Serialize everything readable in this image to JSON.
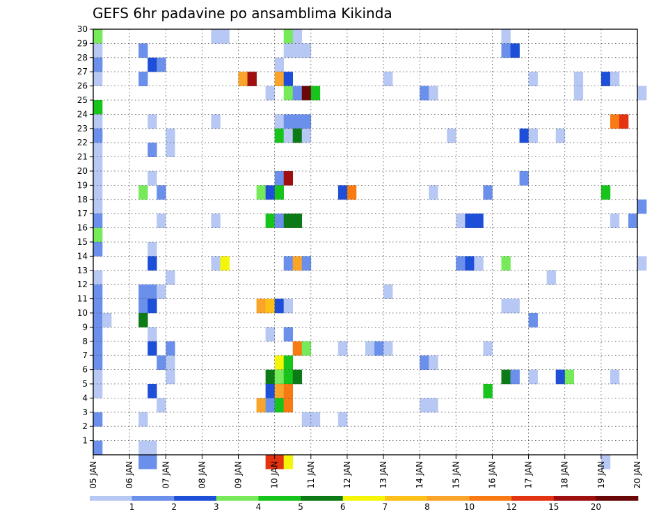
{
  "chart_data": {
    "type": "heatmap",
    "title": "GEFS 6hr padavine po ansamblima Kikinda",
    "x_labels": [
      "05 JAN",
      "06 JAN",
      "07 JAN",
      "08 JAN",
      "09 JAN",
      "10 JAN",
      "11 JAN",
      "12 JAN",
      "13 JAN",
      "14 JAN",
      "15 JAN",
      "16 JAN",
      "17 JAN",
      "18 JAN",
      "19 JAN",
      "20 JAN"
    ],
    "y_labels": [
      "1",
      "2",
      "3",
      "4",
      "5",
      "6",
      "7",
      "8",
      "9",
      "10",
      "11",
      "12",
      "13",
      "14",
      "15",
      "16",
      "17",
      "18",
      "19",
      "20",
      "21",
      "22",
      "23",
      "24",
      "25",
      "26",
      "27",
      "28",
      "29",
      "30"
    ],
    "y_range": [
      0,
      30
    ],
    "x_range": [
      0,
      15
    ],
    "colorbar": {
      "labels": [
        "1",
        "2",
        "3",
        "4",
        "5",
        "6",
        "7",
        "8",
        "10",
        "12",
        "15",
        "20"
      ],
      "colors": [
        "#b8c8f4",
        "#6a90ec",
        "#1e4fd8",
        "#77ea5a",
        "#17c41c",
        "#0c7a16",
        "#f5f50a",
        "#fcc018",
        "#fba42a",
        "#f77a13",
        "#e33310",
        "#a00f0f",
        "#6a0808"
      ]
    },
    "grid": true,
    "cells": [
      {
        "x": 0,
        "y": 29,
        "c": 3
      },
      {
        "x": 0,
        "y": 28,
        "c": 0
      },
      {
        "x": 0,
        "y": 27,
        "c": 1
      },
      {
        "x": 0,
        "y": 26,
        "c": 0
      },
      {
        "x": 0,
        "y": 24,
        "c": 4
      },
      {
        "x": 0,
        "y": 23,
        "c": 0
      },
      {
        "x": 0,
        "y": 22,
        "c": 1
      },
      {
        "x": 0,
        "y": 21,
        "c": 0
      },
      {
        "x": 0,
        "y": 20,
        "c": 0
      },
      {
        "x": 0,
        "y": 19,
        "c": 0
      },
      {
        "x": 0,
        "y": 18,
        "c": 0
      },
      {
        "x": 0,
        "y": 17,
        "c": 0
      },
      {
        "x": 0,
        "y": 16,
        "c": 1
      },
      {
        "x": 0,
        "y": 15,
        "c": 3
      },
      {
        "x": 0,
        "y": 14,
        "c": 1
      },
      {
        "x": 0,
        "y": 12,
        "c": 0
      },
      {
        "x": 0,
        "y": 11,
        "c": 1
      },
      {
        "x": 0,
        "y": 10,
        "c": 1
      },
      {
        "x": 0,
        "y": 9,
        "c": 1
      },
      {
        "x": 0,
        "y": 8,
        "c": 1
      },
      {
        "x": 0,
        "y": 7,
        "c": 1
      },
      {
        "x": 0,
        "y": 6,
        "c": 1
      },
      {
        "x": 0,
        "y": 5,
        "c": 0
      },
      {
        "x": 0,
        "y": 4,
        "c": 0
      },
      {
        "x": 0,
        "y": 2,
        "c": 1
      },
      {
        "x": 0,
        "y": 0,
        "c": 1
      },
      {
        "x": 1,
        "y": 9,
        "c": 0
      },
      {
        "x": 5,
        "y": 28,
        "c": 1
      },
      {
        "x": 5,
        "y": 26,
        "c": 1
      },
      {
        "x": 5,
        "y": 18,
        "c": 3
      },
      {
        "x": 5,
        "y": 11,
        "c": 1
      },
      {
        "x": 5,
        "y": 10,
        "c": 1
      },
      {
        "x": 5,
        "y": 9,
        "c": 5
      },
      {
        "x": 5,
        "y": 2,
        "c": 0
      },
      {
        "x": 5,
        "y": 0,
        "c": 0
      },
      {
        "x": 5,
        "y": -1,
        "c": 1
      },
      {
        "x": 6,
        "y": 27,
        "c": 2
      },
      {
        "x": 6,
        "y": 23,
        "c": 0
      },
      {
        "x": 6,
        "y": 21,
        "c": 1
      },
      {
        "x": 6,
        "y": 19,
        "c": 0
      },
      {
        "x": 6,
        "y": 14,
        "c": 0
      },
      {
        "x": 6,
        "y": 13,
        "c": 2
      },
      {
        "x": 6,
        "y": 11,
        "c": 1
      },
      {
        "x": 6,
        "y": 10,
        "c": 2
      },
      {
        "x": 6,
        "y": 8,
        "c": 0
      },
      {
        "x": 6,
        "y": 7,
        "c": 2
      },
      {
        "x": 6,
        "y": 4,
        "c": 2
      },
      {
        "x": 6,
        "y": 0,
        "c": 0
      },
      {
        "x": 6,
        "y": -1,
        "c": 1
      },
      {
        "x": 7,
        "y": 27,
        "c": 1
      },
      {
        "x": 7,
        "y": 18,
        "c": 1
      },
      {
        "x": 7,
        "y": 16,
        "c": 0
      },
      {
        "x": 7,
        "y": 11,
        "c": 0
      },
      {
        "x": 7,
        "y": 6,
        "c": 1
      },
      {
        "x": 7,
        "y": 3,
        "c": 0
      },
      {
        "x": 8,
        "y": 22,
        "c": 0
      },
      {
        "x": 8,
        "y": 21,
        "c": 0
      },
      {
        "x": 8,
        "y": 12,
        "c": 0
      },
      {
        "x": 8,
        "y": 7,
        "c": 1
      },
      {
        "x": 8,
        "y": 6,
        "c": 0
      },
      {
        "x": 8,
        "y": 5,
        "c": 0
      },
      {
        "x": 13,
        "y": 29,
        "c": 0
      },
      {
        "x": 13,
        "y": 23,
        "c": 0
      },
      {
        "x": 13,
        "y": 16,
        "c": 0
      },
      {
        "x": 13,
        "y": 13,
        "c": 0
      },
      {
        "x": 14,
        "y": 29,
        "c": 0
      },
      {
        "x": 14,
        "y": 13,
        "c": 6
      },
      {
        "x": 16,
        "y": 26,
        "c": 8
      },
      {
        "x": 17,
        "y": 26,
        "c": 11
      },
      {
        "x": 18,
        "y": 18,
        "c": 3
      },
      {
        "x": 18,
        "y": 10,
        "c": 8
      },
      {
        "x": 18,
        "y": 3,
        "c": 8
      },
      {
        "x": 19,
        "y": 25,
        "c": 0
      },
      {
        "x": 19,
        "y": 18,
        "c": 2
      },
      {
        "x": 19,
        "y": 16,
        "c": 4
      },
      {
        "x": 19,
        "y": 10,
        "c": 7
      },
      {
        "x": 19,
        "y": 8,
        "c": 0
      },
      {
        "x": 19,
        "y": 5,
        "c": 5
      },
      {
        "x": 19,
        "y": 4,
        "c": 2
      },
      {
        "x": 19,
        "y": 3,
        "c": 1
      },
      {
        "x": 19,
        "y": -1,
        "c": 10
      },
      {
        "x": 20,
        "y": 27,
        "c": 0
      },
      {
        "x": 20,
        "y": 26,
        "c": 8
      },
      {
        "x": 20,
        "y": 23,
        "c": 0
      },
      {
        "x": 20,
        "y": 22,
        "c": 4
      },
      {
        "x": 20,
        "y": 19,
        "c": 1
      },
      {
        "x": 20,
        "y": 18,
        "c": 4
      },
      {
        "x": 20,
        "y": 16,
        "c": 1
      },
      {
        "x": 20,
        "y": 10,
        "c": 2
      },
      {
        "x": 20,
        "y": 6,
        "c": 6
      },
      {
        "x": 20,
        "y": 5,
        "c": 3
      },
      {
        "x": 20,
        "y": 4,
        "c": 8
      },
      {
        "x": 20,
        "y": 3,
        "c": 4
      },
      {
        "x": 20,
        "y": -1,
        "c": 10
      },
      {
        "x": 21,
        "y": 29,
        "c": 3
      },
      {
        "x": 21,
        "y": 28,
        "c": 0
      },
      {
        "x": 21,
        "y": 26,
        "c": 2
      },
      {
        "x": 21,
        "y": 25,
        "c": 3
      },
      {
        "x": 21,
        "y": 23,
        "c": 1
      },
      {
        "x": 21,
        "y": 22,
        "c": 0
      },
      {
        "x": 21,
        "y": 19,
        "c": 11
      },
      {
        "x": 21,
        "y": 16,
        "c": 5
      },
      {
        "x": 21,
        "y": 13,
        "c": 1
      },
      {
        "x": 21,
        "y": 10,
        "c": 0
      },
      {
        "x": 21,
        "y": 8,
        "c": 1
      },
      {
        "x": 21,
        "y": 6,
        "c": 4
      },
      {
        "x": 21,
        "y": 5,
        "c": 4
      },
      {
        "x": 21,
        "y": 4,
        "c": 9
      },
      {
        "x": 21,
        "y": 3,
        "c": 9
      },
      {
        "x": 21,
        "y": -1,
        "c": 6
      },
      {
        "x": 22,
        "y": 29,
        "c": 0
      },
      {
        "x": 22,
        "y": 28,
        "c": 0
      },
      {
        "x": 22,
        "y": 25,
        "c": 1
      },
      {
        "x": 22,
        "y": 23,
        "c": 1
      },
      {
        "x": 22,
        "y": 22,
        "c": 5
      },
      {
        "x": 22,
        "y": 16,
        "c": 5
      },
      {
        "x": 22,
        "y": 13,
        "c": 8
      },
      {
        "x": 22,
        "y": 7,
        "c": 9
      },
      {
        "x": 22,
        "y": 5,
        "c": 5
      },
      {
        "x": 23,
        "y": 28,
        "c": 0
      },
      {
        "x": 23,
        "y": 25,
        "c": 12
      },
      {
        "x": 23,
        "y": 23,
        "c": 1
      },
      {
        "x": 23,
        "y": 22,
        "c": 0
      },
      {
        "x": 23,
        "y": 13,
        "c": 1
      },
      {
        "x": 23,
        "y": 7,
        "c": 3
      },
      {
        "x": 23,
        "y": 2,
        "c": 0
      },
      {
        "x": 24,
        "y": 25,
        "c": 4
      },
      {
        "x": 24,
        "y": 2,
        "c": 0
      },
      {
        "x": 27,
        "y": 18,
        "c": 2
      },
      {
        "x": 27,
        "y": 7,
        "c": 0
      },
      {
        "x": 27,
        "y": 2,
        "c": 0
      },
      {
        "x": 28,
        "y": 18,
        "c": 9
      },
      {
        "x": 30,
        "y": 7,
        "c": 0
      },
      {
        "x": 31,
        "y": 7,
        "c": 1
      },
      {
        "x": 32,
        "y": 26,
        "c": 0
      },
      {
        "x": 32,
        "y": 7,
        "c": 0
      },
      {
        "x": 32,
        "y": 11,
        "c": 0
      },
      {
        "x": 36,
        "y": 25,
        "c": 1
      },
      {
        "x": 36,
        "y": 6,
        "c": 1
      },
      {
        "x": 36,
        "y": 3,
        "c": 0
      },
      {
        "x": 37,
        "y": 25,
        "c": 0
      },
      {
        "x": 37,
        "y": 18,
        "c": 0
      },
      {
        "x": 37,
        "y": 6,
        "c": 0
      },
      {
        "x": 37,
        "y": 3,
        "c": 0
      },
      {
        "x": 39,
        "y": 22,
        "c": 0
      },
      {
        "x": 40,
        "y": 16,
        "c": 0
      },
      {
        "x": 40,
        "y": 13,
        "c": 1
      },
      {
        "x": 41,
        "y": 16,
        "c": 2
      },
      {
        "x": 41,
        "y": 13,
        "c": 2
      },
      {
        "x": 42,
        "y": 16,
        "c": 2
      },
      {
        "x": 42,
        "y": 13,
        "c": 0
      },
      {
        "x": 43,
        "y": 18,
        "c": 1
      },
      {
        "x": 43,
        "y": 7,
        "c": 0
      },
      {
        "x": 43,
        "y": 4,
        "c": 4
      },
      {
        "x": 45,
        "y": 29,
        "c": 0
      },
      {
        "x": 45,
        "y": 28,
        "c": 1
      },
      {
        "x": 45,
        "y": 13,
        "c": 3
      },
      {
        "x": 45,
        "y": 10,
        "c": 0
      },
      {
        "x": 45,
        "y": 5,
        "c": 5
      },
      {
        "x": 46,
        "y": 28,
        "c": 2
      },
      {
        "x": 46,
        "y": 10,
        "c": 0
      },
      {
        "x": 46,
        "y": 5,
        "c": 1
      },
      {
        "x": 47,
        "y": 22,
        "c": 2
      },
      {
        "x": 47,
        "y": 19,
        "c": 1
      },
      {
        "x": 48,
        "y": 26,
        "c": 0
      },
      {
        "x": 48,
        "y": 22,
        "c": 0
      },
      {
        "x": 48,
        "y": 9,
        "c": 1
      },
      {
        "x": 48,
        "y": 5,
        "c": 0
      },
      {
        "x": 50,
        "y": 12,
        "c": 0
      },
      {
        "x": 51,
        "y": 22,
        "c": 0
      },
      {
        "x": 51,
        "y": 5,
        "c": 2
      },
      {
        "x": 52,
        "y": 5,
        "c": 3
      },
      {
        "x": 53,
        "y": 26,
        "c": 0
      },
      {
        "x": 53,
        "y": 25,
        "c": 0
      },
      {
        "x": 56,
        "y": 26,
        "c": 2
      },
      {
        "x": 56,
        "y": 18,
        "c": 4
      },
      {
        "x": 56,
        "y": -1,
        "c": 0
      },
      {
        "x": 57,
        "y": 26,
        "c": 0
      },
      {
        "x": 57,
        "y": 23,
        "c": 9
      },
      {
        "x": 57,
        "y": 16,
        "c": 0
      },
      {
        "x": 57,
        "y": 5,
        "c": 0
      },
      {
        "x": 58,
        "y": 23,
        "c": 10
      },
      {
        "x": 59,
        "y": 16,
        "c": 1
      },
      {
        "x": 60,
        "y": 25,
        "c": 0
      },
      {
        "x": 60,
        "y": 17,
        "c": 1
      },
      {
        "x": 60,
        "y": 13,
        "c": 0
      }
    ]
  }
}
